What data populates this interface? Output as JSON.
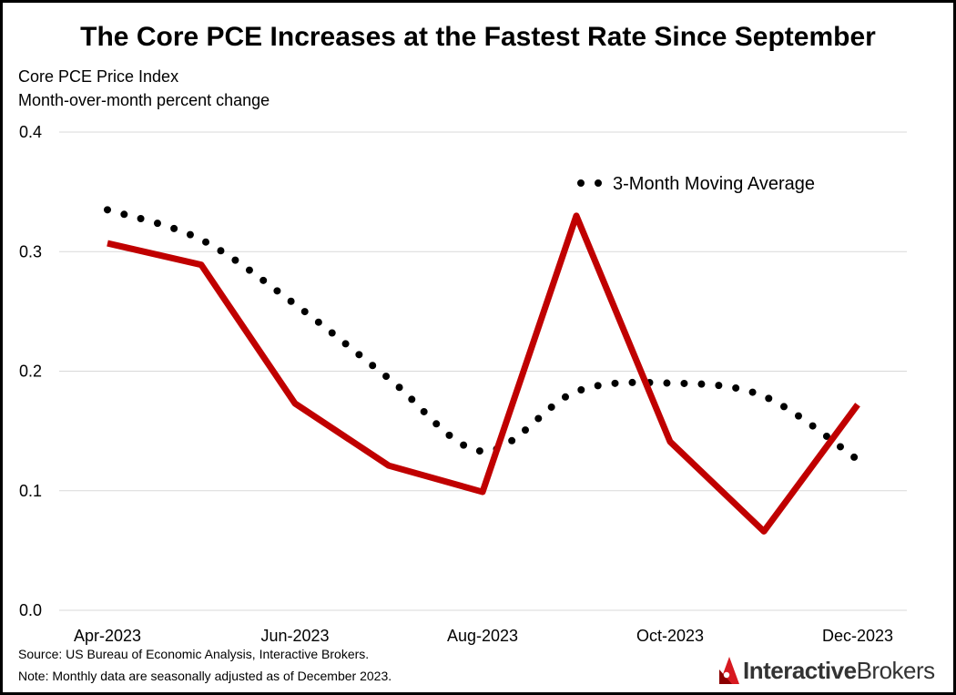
{
  "colors": {
    "series_line": "#c00000",
    "moving_average": "#000000",
    "gridline": "#d9d9d9",
    "brand_red": "#d71920",
    "brand_text": "#333333"
  },
  "chart_data": {
    "type": "line",
    "title": "The Core PCE Increases at the Fastest Rate Since September",
    "subtitle_lines": [
      "Core PCE Price Index",
      "Month-over-month percent change"
    ],
    "xlabel": "",
    "ylabel": "",
    "categories": [
      "Apr-2023",
      "May-2023",
      "Jun-2023",
      "Jul-2023",
      "Aug-2023",
      "Sep-2023",
      "Oct-2023",
      "Nov-2023",
      "Dec-2023"
    ],
    "x_tick_labels": [
      "Apr-2023",
      "",
      "Jun-2023",
      "",
      "Aug-2023",
      "",
      "Oct-2023",
      "",
      "Dec-2023"
    ],
    "ylim": [
      0,
      0.4
    ],
    "y_ticks": [
      0.0,
      0.1,
      0.2,
      0.3,
      0.4
    ],
    "y_tick_labels": [
      "0.0",
      "0.1",
      "0.2",
      "0.3",
      "0.4"
    ],
    "grid": true,
    "series": [
      {
        "name": "Core PCE Price Index (m/m %)",
        "style": "solid",
        "values": [
          0.307,
          0.289,
          0.173,
          0.121,
          0.099,
          0.33,
          0.141,
          0.066,
          0.172
        ]
      },
      {
        "name": "3-Month Moving Average",
        "style": "dotted",
        "values": [
          0.335,
          0.31,
          0.256,
          0.194,
          0.133,
          0.183,
          0.19,
          0.179,
          0.126
        ]
      }
    ],
    "legend": {
      "placement": "top-right",
      "entries": [
        "3-Month Moving Average"
      ]
    }
  },
  "footer": {
    "source": "Source: US Bureau of Economic Analysis, Interactive Brokers.",
    "note": "Note: Monthly data are seasonally adjusted as of December 2023."
  },
  "brand": {
    "part1": "Interactive",
    "part2": "Brokers",
    "logo_icon": "interactive-brokers-logo-icon"
  }
}
